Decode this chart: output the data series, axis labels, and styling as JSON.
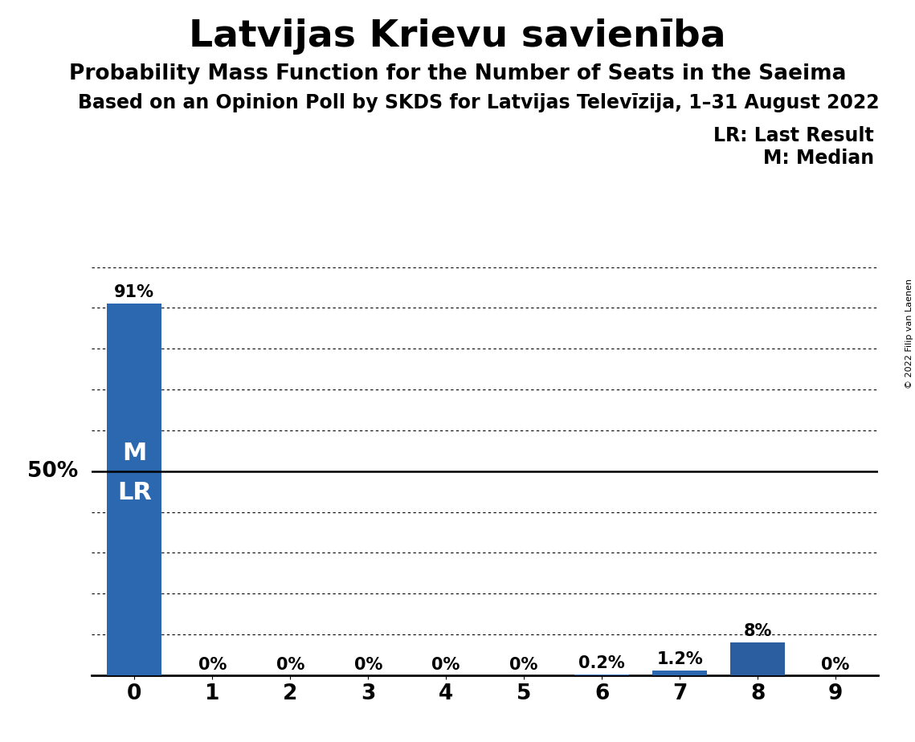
{
  "title": "Latvijas Krievu savienība",
  "subtitle1": "Probability Mass Function for the Number of Seats in the Saeima",
  "subtitle2": "Based on an Opinion Poll by SKDS for Latvijas Televīzija, 1–31 August 2022",
  "copyright": "© 2022 Filip van Laenen",
  "categories": [
    0,
    1,
    2,
    3,
    4,
    5,
    6,
    7,
    8,
    9
  ],
  "values": [
    91.0,
    0.0,
    0.0,
    0.0,
    0.0,
    0.0,
    0.2,
    1.2,
    8.0,
    0.0
  ],
  "bar_color_main": "#2B68B0",
  "bar_color_dark": "#2B5EA0",
  "bar_labels": [
    "91%",
    "0%",
    "0%",
    "0%",
    "0%",
    "0%",
    "0.2%",
    "1.2%",
    "8%",
    "0%"
  ],
  "median_seat": 0,
  "last_result_seat": 0,
  "median_label": "M",
  "lr_label": "LR",
  "legend_lr": "LR: Last Result",
  "legend_m": "M: Median",
  "ylabel_50": "50%",
  "ylim": [
    0,
    100
  ],
  "yticks": [
    10,
    20,
    30,
    40,
    50,
    60,
    70,
    80,
    90,
    100
  ],
  "bg_color": "#FFFFFF",
  "title_fontsize": 34,
  "subtitle1_fontsize": 19,
  "subtitle2_fontsize": 17,
  "bar_label_fontsize": 15,
  "tick_label_fontsize": 19,
  "legend_fontsize": 17,
  "ylabel_fontsize": 19
}
